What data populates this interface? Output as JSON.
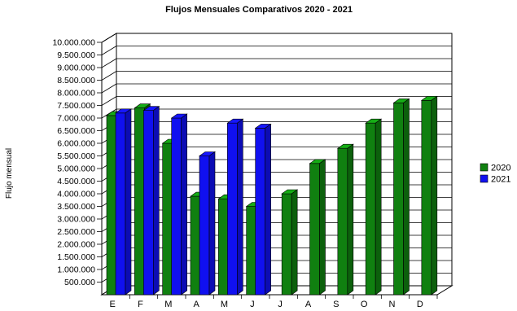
{
  "chart_data": {
    "type": "bar",
    "title": "Flujos Mensuales Comparativos 2020 - 2021",
    "xlabel": "",
    "ylabel": "Flujo mensual",
    "categories": [
      "E",
      "F",
      "M",
      "A",
      "M",
      "J",
      "J",
      "A",
      "S",
      "O",
      "N",
      "D"
    ],
    "ylim": [
      0,
      10000000
    ],
    "yticks": [
      "500.000",
      "1.000.000",
      "1.500.000",
      "2.000.000",
      "2.500.000",
      "3.000.000",
      "3.500.000",
      "4.000.000",
      "4.500.000",
      "5.000.000",
      "5.500.000",
      "6.000.000",
      "6.500.000",
      "7.000.000",
      "7.500.000",
      "8.000.000",
      "8.500.000",
      "9.000.000",
      "9.500.000",
      "10.000.000"
    ],
    "grid": true,
    "legend_position": "right",
    "style": "3d",
    "series": [
      {
        "name": "2020",
        "color": "#108010",
        "values": [
          7100000,
          7400000,
          6000000,
          3900000,
          3800000,
          3500000,
          4000000,
          5200000,
          5800000,
          6800000,
          7600000,
          7700000
        ]
      },
      {
        "name": "2021",
        "color": "#1010f0",
        "values": [
          7200000,
          7300000,
          7000000,
          5500000,
          6800000,
          6600000,
          null,
          null,
          null,
          null,
          null,
          null
        ]
      }
    ]
  }
}
